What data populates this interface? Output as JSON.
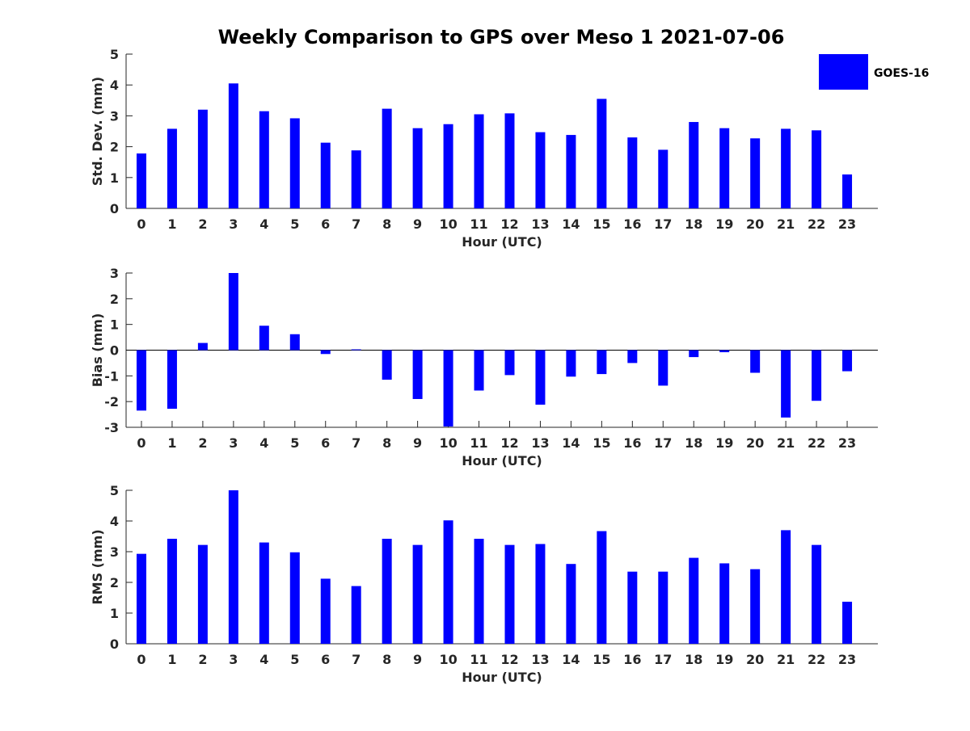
{
  "chart_data": {
    "title": "Weekly Comparison to GPS over Meso 1 2021-07-06",
    "legend": {
      "label": "GOES-16",
      "color": "#0000ff",
      "placement": "top-right"
    },
    "bar_color": "#0000ff",
    "panels": [
      {
        "type": "bar",
        "xlabel": "Hour (UTC)",
        "ylabel": "Std. Dev. (mm)",
        "ylim": [
          0,
          5
        ],
        "yticks": [
          0,
          1,
          2,
          3,
          4,
          5
        ],
        "categories": [
          "0",
          "1",
          "2",
          "3",
          "4",
          "5",
          "6",
          "7",
          "8",
          "9",
          "10",
          "11",
          "12",
          "13",
          "14",
          "15",
          "16",
          "17",
          "18",
          "19",
          "20",
          "21",
          "22",
          "23"
        ],
        "series": [
          {
            "name": "GOES-16",
            "values": [
              1.78,
              2.58,
              3.2,
              4.05,
              3.15,
              2.92,
              2.13,
              1.88,
              3.23,
              2.6,
              2.73,
              3.05,
              3.08,
              2.47,
              2.38,
              3.55,
              2.3,
              1.9,
              2.8,
              2.6,
              2.27,
              2.58,
              2.53,
              1.1
            ]
          }
        ]
      },
      {
        "type": "bar",
        "xlabel": "Hour (UTC)",
        "ylabel": "Bias (mm)",
        "ylim": [
          -3,
          3
        ],
        "yticks": [
          -3,
          -2,
          -1,
          0,
          1,
          2,
          3
        ],
        "zero_line": true,
        "categories": [
          "0",
          "1",
          "2",
          "3",
          "4",
          "5",
          "6",
          "7",
          "8",
          "9",
          "10",
          "11",
          "12",
          "13",
          "14",
          "15",
          "16",
          "17",
          "18",
          "19",
          "20",
          "21",
          "22",
          "23"
        ],
        "series": [
          {
            "name": "GOES-16",
            "values": [
              -2.35,
              -2.28,
              0.28,
              3.0,
              0.95,
              0.62,
              -0.15,
              0.03,
              -1.15,
              -1.9,
              -2.97,
              -1.57,
              -0.97,
              -2.12,
              -1.03,
              -0.93,
              -0.5,
              -1.38,
              -0.27,
              -0.08,
              -0.88,
              -2.62,
              -1.97,
              -0.82
            ]
          }
        ]
      },
      {
        "type": "bar",
        "xlabel": "Hour (UTC)",
        "ylabel": "RMS (mm)",
        "ylim": [
          0,
          5
        ],
        "yticks": [
          0,
          1,
          2,
          3,
          4,
          5
        ],
        "categories": [
          "0",
          "1",
          "2",
          "3",
          "4",
          "5",
          "6",
          "7",
          "8",
          "9",
          "10",
          "11",
          "12",
          "13",
          "14",
          "15",
          "16",
          "17",
          "18",
          "19",
          "20",
          "21",
          "22",
          "23"
        ],
        "series": [
          {
            "name": "GOES-16",
            "values": [
              2.93,
              3.42,
              3.22,
              5.0,
              3.3,
              2.98,
              2.12,
              1.88,
              3.42,
              3.22,
              4.02,
              3.42,
              3.22,
              3.25,
              2.6,
              3.67,
              2.35,
              2.35,
              2.8,
              2.62,
              2.43,
              3.7,
              3.22,
              1.37
            ]
          }
        ]
      }
    ]
  }
}
